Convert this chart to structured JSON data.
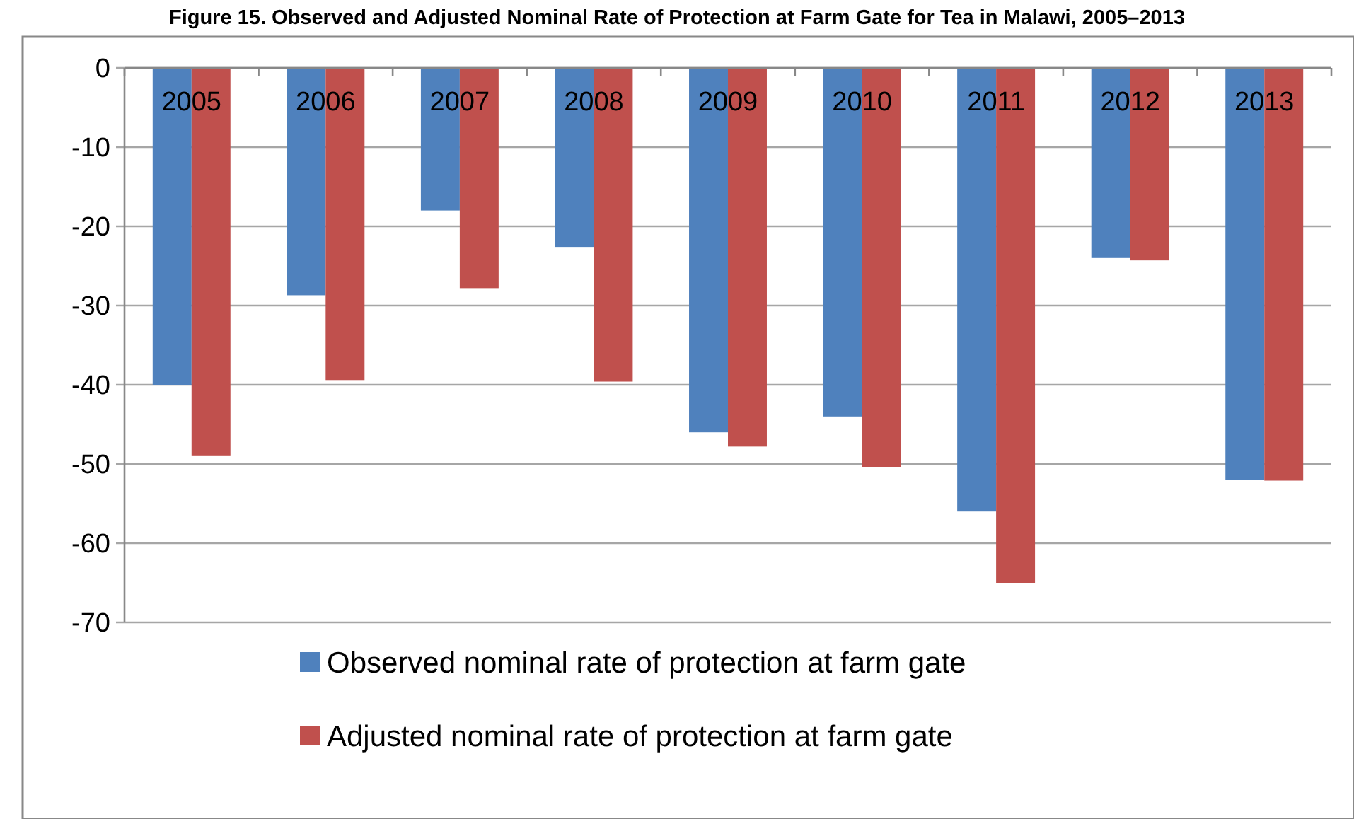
{
  "chart_data": {
    "type": "bar",
    "title": "Figure 15. Observed and Adjusted Nominal Rate of Protection at Farm Gate for Tea in Malawi, 2005–2013",
    "categories": [
      "2005",
      "2006",
      "2007",
      "2008",
      "2009",
      "2010",
      "2011",
      "2012",
      "2013"
    ],
    "series": [
      {
        "name": "Observed nominal rate of protection at farm gate",
        "color": "#4f81bd",
        "values": [
          -40,
          -28.7,
          -18,
          -22.6,
          -46,
          -44,
          -56,
          -24,
          -52
        ]
      },
      {
        "name": "Adjusted nominal rate of protection at farm gate",
        "color": "#c0504d",
        "values": [
          -49,
          -39.4,
          -27.8,
          -39.6,
          -47.8,
          -50.4,
          -65,
          -24.3,
          -52.1
        ]
      }
    ],
    "ylim": [
      -70,
      0
    ],
    "yticks": [
      0,
      -10,
      -20,
      -30,
      -40,
      -50,
      -60,
      -70
    ],
    "grid": "y",
    "legend": "bottom"
  }
}
